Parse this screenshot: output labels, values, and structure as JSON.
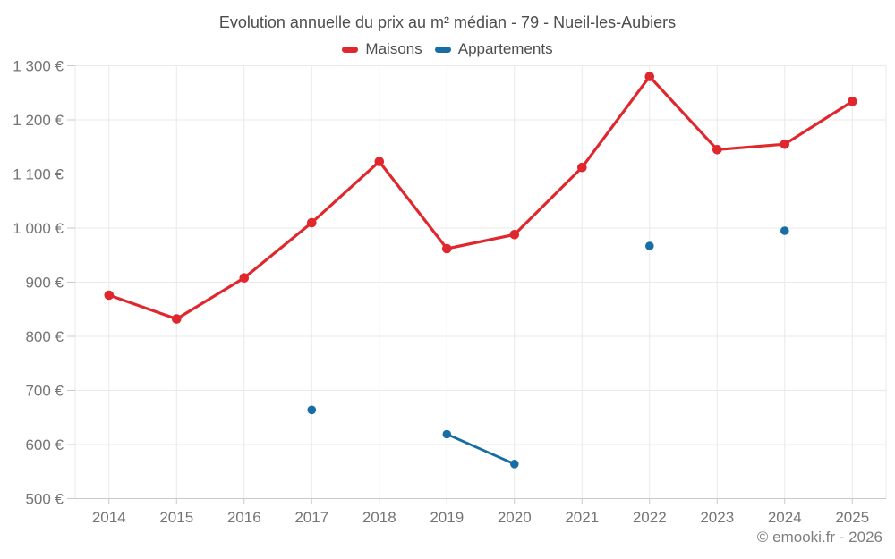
{
  "title": "Evolution annuelle du prix au m² médian - 79 - Nueil-les-Aubiers",
  "footer": "© emooki.fr - 2026",
  "legend": [
    {
      "id": "maisons",
      "label": "Maisons",
      "color": "#e1272e"
    },
    {
      "id": "appartements",
      "label": "Appartements",
      "color": "#176da4"
    }
  ],
  "colors": {
    "grid": "#e9e9e9",
    "axis": "#c9c9c9",
    "axis_text": "#757575",
    "title_text": "#4d4d4d",
    "footer_text": "#7f7f7f",
    "background": "#ffffff"
  },
  "chart_data": {
    "type": "line",
    "title": "Evolution annuelle du prix au m² médian - 79 - Nueil-les-Aubiers",
    "xlabel": "",
    "ylabel": "",
    "categories": [
      "2014",
      "2015",
      "2016",
      "2017",
      "2018",
      "2019",
      "2020",
      "2021",
      "2022",
      "2023",
      "2024",
      "2025"
    ],
    "series": [
      {
        "name": "Maisons",
        "color": "#e1272e",
        "values": [
          876,
          832,
          908,
          1010,
          1123,
          962,
          988,
          1112,
          1280,
          1145,
          1155,
          1234
        ]
      },
      {
        "name": "Appartements",
        "color": "#176da4",
        "values": [
          null,
          null,
          null,
          664,
          null,
          619,
          564,
          null,
          967,
          null,
          995,
          null
        ]
      }
    ],
    "y_axis": {
      "min": 500,
      "max": 1300,
      "step": 100,
      "tick_labels": [
        "500 €",
        "600 €",
        "700 €",
        "800 €",
        "900 €",
        "1 000 €",
        "1 100 €",
        "1 200 €",
        "1 300 €"
      ],
      "unit": "€"
    },
    "grid": true,
    "legend_position": "top"
  }
}
